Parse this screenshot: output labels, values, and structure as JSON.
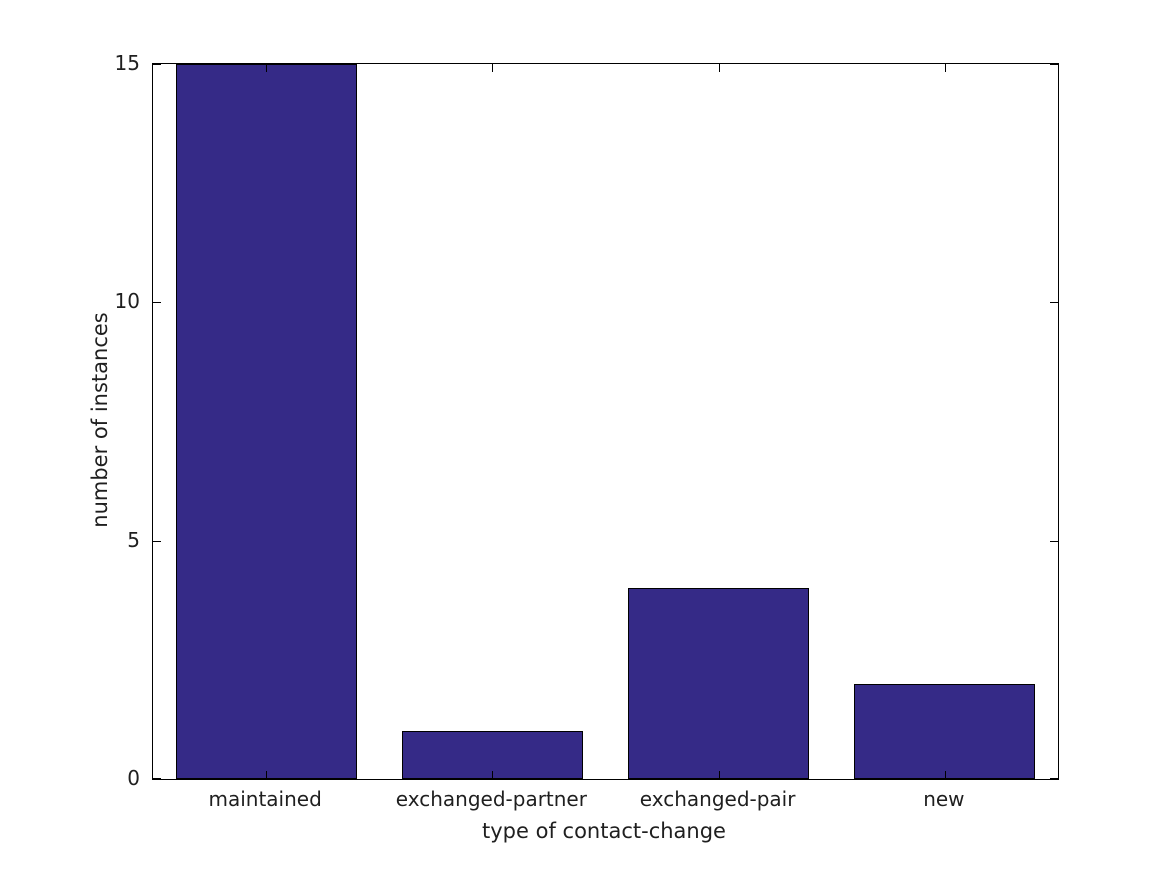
{
  "chart_data": {
    "type": "bar",
    "categories": [
      "maintained",
      "exchanged-partner",
      "exchanged-pair",
      "new"
    ],
    "values": [
      15,
      1,
      4,
      2
    ],
    "xlabel": "type of contact-change",
    "ylabel": "number of instances",
    "ylim": [
      0,
      15
    ],
    "yticks": [
      0,
      5,
      10,
      15
    ],
    "bar_width_fraction": 0.8,
    "bar_color": "#352A87",
    "bar_edge_color": "#000000",
    "axis_color": "#000000",
    "text_color": "#1f1f1f",
    "background_color": "#ffffff",
    "grid": false,
    "legend": "none",
    "tick_direction": "in"
  }
}
